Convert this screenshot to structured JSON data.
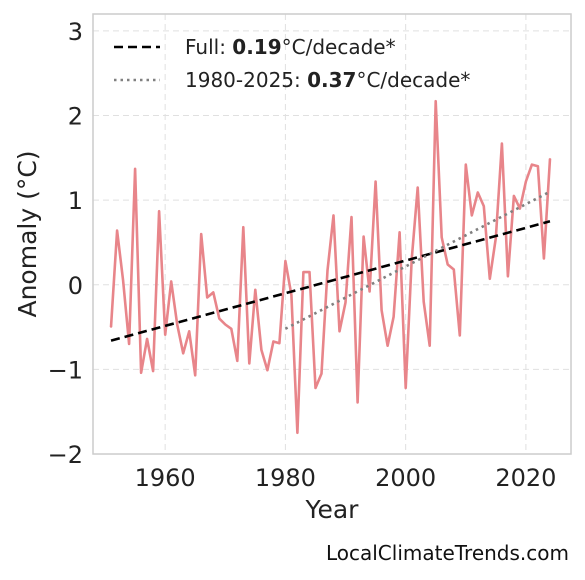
{
  "chart_data": {
    "type": "line",
    "xlabel": "Year",
    "ylabel": "Anomaly (°C)",
    "xlim": [
      1948,
      2027.5
    ],
    "ylim": [
      -2,
      3.2
    ],
    "xticks": [
      1960,
      1980,
      2000,
      2020
    ],
    "yticks": [
      -2,
      -1,
      0,
      1,
      2,
      3
    ],
    "ytick_labels": [
      "−2",
      "−1",
      "0",
      "1",
      "2",
      "3"
    ],
    "grid": true,
    "legend_position": "top-left",
    "series": [
      {
        "x": [
          1951,
          1952,
          1953,
          1954,
          1955,
          1956,
          1957,
          1958,
          1959,
          1960,
          1961,
          1962,
          1963,
          1964,
          1965,
          1966,
          1967,
          1968,
          1969,
          1970,
          1971,
          1972,
          1973,
          1974,
          1975,
          1976,
          1977,
          1978,
          1979,
          1980,
          1981,
          1982,
          1983,
          1984,
          1985,
          1986,
          1987,
          1988,
          1989,
          1990,
          1991,
          1992,
          1993,
          1994,
          1995,
          1996,
          1997,
          1998,
          1999,
          2000,
          2001,
          2002,
          2003,
          2004,
          2005,
          2006,
          2007,
          2008,
          2009,
          2010,
          2011,
          2012,
          2013,
          2014,
          2015,
          2016,
          2017,
          2018,
          2019,
          2020,
          2021,
          2022,
          2023,
          2024
        ],
        "values": [
          -0.5,
          0.64,
          0.05,
          -0.7,
          1.37,
          -1.04,
          -0.64,
          -1.02,
          0.87,
          -0.59,
          0.04,
          -0.47,
          -0.81,
          -0.55,
          -1.07,
          0.6,
          -0.15,
          -0.09,
          -0.4,
          -0.47,
          -0.52,
          -0.9,
          0.68,
          -0.93,
          -0.06,
          -0.77,
          -1.01,
          -0.67,
          -0.69,
          0.28,
          -0.12,
          -1.75,
          0.15,
          0.15,
          -1.22,
          -1.05,
          0.17,
          0.82,
          -0.55,
          -0.21,
          0.8,
          -1.39,
          0.57,
          -0.08,
          1.22,
          -0.3,
          -0.72,
          -0.38,
          0.62,
          -1.22,
          0.3,
          1.15,
          -0.2,
          -0.72,
          2.17,
          0.56,
          0.24,
          0.18,
          -0.6,
          1.42,
          0.82,
          1.09,
          0.93,
          0.07,
          0.55,
          1.67,
          0.1,
          1.05,
          0.9,
          1.22,
          1.42,
          1.4,
          0.31,
          1.49
        ],
        "color": "#e8858a"
      },
      {
        "name": "Full: 0.19°C/decade*",
        "line_style": "dashed",
        "color": "#000000",
        "x": [
          1951,
          2024
        ],
        "values": [
          -0.66,
          0.75
        ]
      },
      {
        "name": "1980-2025: 0.37°C/decade*",
        "line_style": "dotted",
        "color": "#808080",
        "x": [
          1980,
          2024
        ],
        "values": [
          -0.52,
          1.1
        ]
      }
    ]
  },
  "legend": {
    "full_prefix": "Full: ",
    "full_rate": "0.19",
    "full_suffix": "°C/decade*",
    "recent_prefix": "1980-2025: ",
    "recent_rate": "0.37",
    "recent_suffix": "°C/decade*"
  },
  "source_text": "LocalClimateTrends.com",
  "colors": {
    "anomaly_line": "#e8858a",
    "trend_full": "#000000",
    "trend_recent": "#808080",
    "grid": "#e0e0e0",
    "axes_frame": "#cccccc"
  }
}
